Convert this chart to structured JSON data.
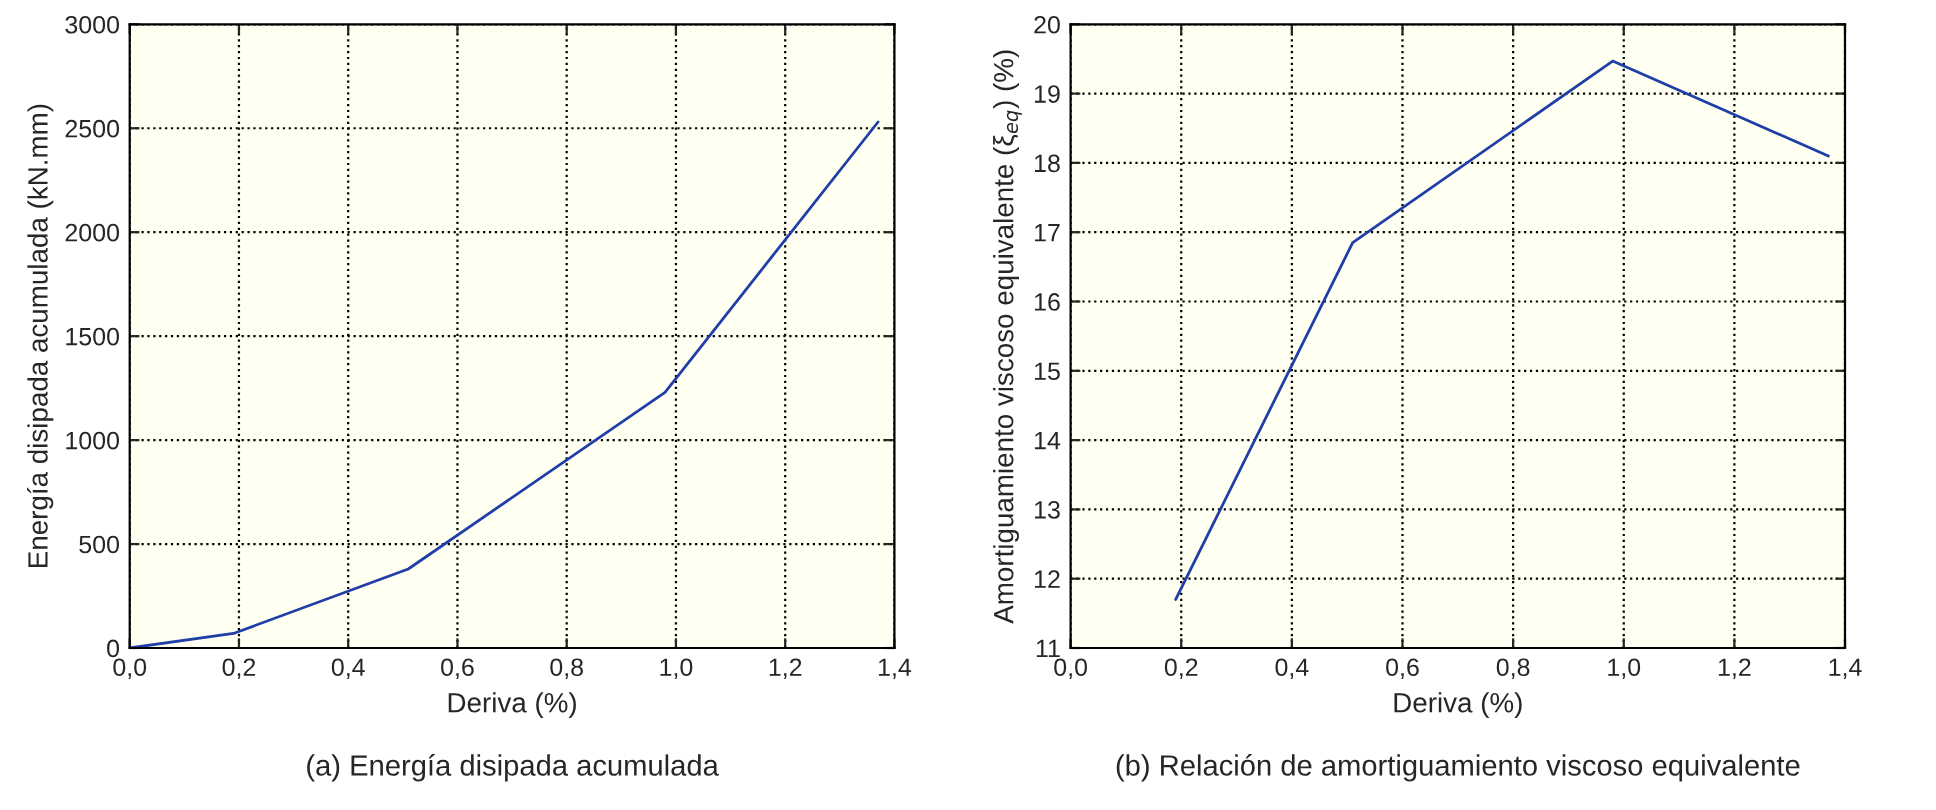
{
  "chart_data": [
    {
      "type": "line",
      "title": "(a) Energía disipada acumulada",
      "xlabel": "Deriva (%)",
      "ylabel": "Energía disipada acumulada (kN.mm)",
      "x": [
        0,
        0.19,
        0.51,
        0.98,
        1.37
      ],
      "series": [
        {
          "color": "#1f3ea8",
          "values": [
            0,
            70,
            380,
            1230,
            2530
          ]
        }
      ],
      "xlim": [
        0,
        1.4
      ],
      "xticks": [
        {
          "value": 0,
          "label": "0,0"
        },
        {
          "value": 0.2,
          "label": "0,2"
        },
        {
          "value": 0.4,
          "label": "0,4"
        },
        {
          "value": 0.6,
          "label": "0,6"
        },
        {
          "value": 0.8,
          "label": "0,8"
        },
        {
          "value": 1.0,
          "label": "1,0"
        },
        {
          "value": 1.2,
          "label": "1,2"
        },
        {
          "value": 1.4,
          "label": "1,4"
        }
      ],
      "ylim": [
        0,
        3000
      ],
      "yticks": [
        0,
        500,
        1000,
        1500,
        2000,
        2500,
        3000
      ],
      "grid": true,
      "line_style": "solid"
    },
    {
      "type": "line",
      "title": "(b) Relación de amortiguamiento viscoso equivalente",
      "xlabel": "Deriva (%)",
      "ylabel": "Amortiguamiento viscoso equivalente (ξ$_{eq}$) (%)",
      "x": [
        0.19,
        0.51,
        0.98,
        1.37
      ],
      "series": [
        {
          "color": "#1f3ea8",
          "values": [
            11.7,
            16.85,
            19.47,
            18.1
          ]
        }
      ],
      "xlim": [
        0,
        1.4
      ],
      "xticks": [
        {
          "value": 0,
          "label": "0,0"
        },
        {
          "value": 0.2,
          "label": "0,2"
        },
        {
          "value": 0.4,
          "label": "0,4"
        },
        {
          "value": 0.6,
          "label": "0,6"
        },
        {
          "value": 0.8,
          "label": "0,8"
        },
        {
          "value": 1.0,
          "label": "1,0"
        },
        {
          "value": 1.2,
          "label": "1,2"
        },
        {
          "value": 1.4,
          "label": "1,4"
        }
      ],
      "ylim": [
        11,
        20
      ],
      "yticks": [
        11,
        12,
        13,
        14,
        15,
        16,
        17,
        18,
        19,
        20
      ],
      "grid": true,
      "line_style": "solid"
    }
  ]
}
